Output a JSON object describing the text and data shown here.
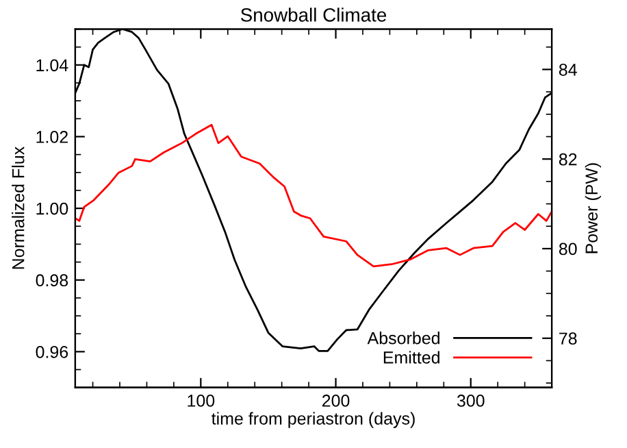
{
  "chart_data": {
    "type": "line",
    "title": "Snowball Climate",
    "xlabel": "time from periastron (days)",
    "ylabel": "Normalized Flux",
    "y2label": "Power (PW)",
    "xlim": [
      7,
      360
    ],
    "xticks": [
      100,
      200,
      300
    ],
    "ylim": [
      0.95,
      1.05
    ],
    "yticks": [
      {
        "value": 0.96,
        "label": "0.96"
      },
      {
        "value": 0.98,
        "label": "0.98"
      },
      {
        "value": 1.0,
        "label": "1.00"
      },
      {
        "value": 1.02,
        "label": "1.02"
      },
      {
        "value": 1.04,
        "label": "1.04"
      }
    ],
    "y2lim": [
      76.9,
      84.9
    ],
    "y2ticks": [
      78,
      80,
      82,
      84
    ],
    "legend": "bottom right",
    "grid": false,
    "marker": "none",
    "line_style": "solid",
    "series": [
      {
        "name": "Absorbed",
        "color": "#000000",
        "x": [
          7,
          10,
          13.6,
          17,
          20,
          24,
          28.8,
          35.5,
          42,
          49,
          54,
          59,
          67.6,
          76,
          82.8,
          87.8,
          93,
          101,
          110,
          118,
          125,
          133.4,
          142,
          150,
          160.5,
          174,
          184,
          187.4,
          194,
          201,
          207.7,
          216,
          224.6,
          234.8,
          246.6,
          258.4,
          268.5,
          282,
          292,
          302,
          316,
          326,
          336,
          343,
          350,
          355,
          360
        ],
        "values": [
          1.0322,
          1.0348,
          1.04,
          1.0394,
          1.0443,
          1.0462,
          1.0475,
          1.0492,
          1.05,
          1.0492,
          1.0475,
          1.0443,
          1.0386,
          1.0348,
          1.0278,
          1.0208,
          1.0163,
          1.0093,
          1.001,
          0.9934,
          0.9857,
          0.9781,
          0.9717,
          0.9653,
          0.9615,
          0.9609,
          0.9615,
          0.9602,
          0.9602,
          0.9634,
          0.966,
          0.9662,
          0.9717,
          0.9768,
          0.9826,
          0.9876,
          0.9915,
          0.9959,
          0.9991,
          1.0023,
          1.0074,
          1.0125,
          1.0163,
          1.022,
          1.0265,
          1.0309,
          1.0322
        ]
      },
      {
        "name": "Emitted",
        "color": "#ff0000",
        "x": [
          7,
          10,
          13.6,
          20.8,
          32,
          39,
          49,
          51.4,
          62.5,
          72.6,
          86,
          96.3,
          108,
          113,
          120,
          130,
          143.6,
          153.7,
          162,
          169,
          174,
          181,
          191,
          207.7,
          216,
          228,
          241.5,
          255,
          268.5,
          282,
          292,
          302,
          316,
          324,
          333,
          340,
          350,
          356,
          360
        ],
        "values": [
          0.9972,
          0.9965,
          1.0004,
          1.0023,
          1.0067,
          1.0099,
          1.0118,
          1.0137,
          1.0131,
          1.0156,
          1.0182,
          1.0208,
          1.0233,
          1.0182,
          1.0201,
          1.0144,
          1.0125,
          1.0087,
          1.0061,
          0.9991,
          0.998,
          0.9972,
          0.9921,
          0.9908,
          0.987,
          0.9838,
          0.9844,
          0.9857,
          0.9883,
          0.9889,
          0.987,
          0.9889,
          0.9895,
          0.9934,
          0.9959,
          0.994,
          0.9984,
          0.9965,
          0.9991
        ]
      }
    ]
  }
}
